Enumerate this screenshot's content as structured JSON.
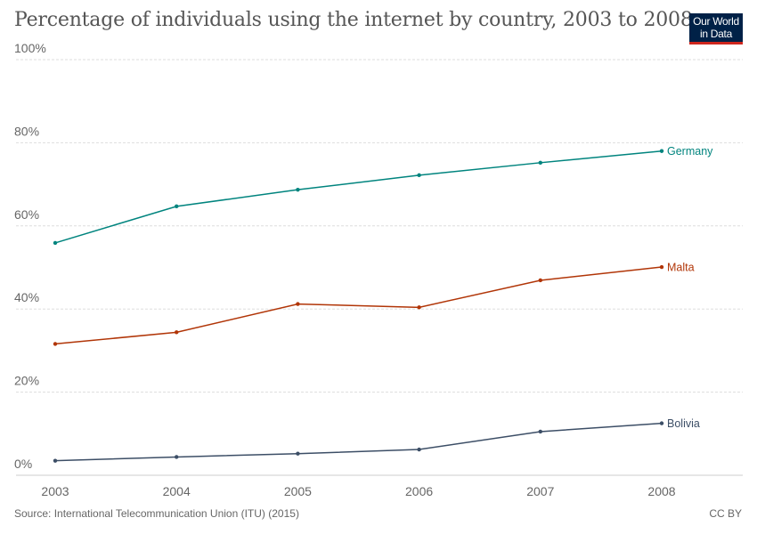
{
  "title": "Percentage of individuals using the internet by country, 2003 to 2008",
  "logo": {
    "line1": "Our World",
    "line2": "in Data"
  },
  "footer": {
    "source": "Source: International Telecommunication Union (ITU) (2015)",
    "license": "CC BY"
  },
  "chart_data": {
    "type": "line",
    "title": "Percentage of individuals using the internet by country, 2003 to 2008",
    "xlabel": "",
    "ylabel": "",
    "x": [
      2003,
      2004,
      2005,
      2006,
      2007,
      2008
    ],
    "x_tick_labels": [
      "2003",
      "2004",
      "2005",
      "2006",
      "2007",
      "2008"
    ],
    "y_tick_labels": [
      "0%",
      "20%",
      "40%",
      "60%",
      "80%",
      "100%"
    ],
    "ylim": [
      0,
      100
    ],
    "grid": "horizontal dotted",
    "legend": "labels at line ends",
    "series": [
      {
        "name": "Germany",
        "color": "#00847e",
        "values": [
          55.9,
          64.7,
          68.7,
          72.2,
          75.2,
          78.0
        ]
      },
      {
        "name": "Malta",
        "color": "#b13507",
        "values": [
          31.6,
          34.4,
          41.2,
          40.4,
          46.9,
          50.1
        ]
      },
      {
        "name": "Bolivia",
        "color": "#3c4e66",
        "values": [
          3.5,
          4.4,
          5.2,
          6.2,
          10.5,
          12.5
        ]
      }
    ]
  }
}
